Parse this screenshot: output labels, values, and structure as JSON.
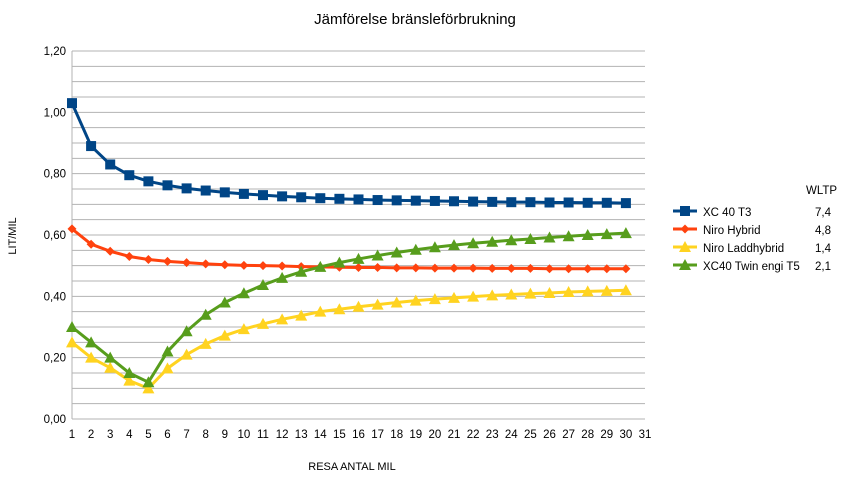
{
  "chart_data": {
    "type": "line",
    "title": "Jämförelse bränsleförbrukning",
    "xlabel": "RESA ANTAL MIL",
    "ylabel": "LIT/MIL",
    "x_ticks": [
      1,
      2,
      3,
      4,
      5,
      6,
      7,
      8,
      9,
      10,
      11,
      12,
      13,
      14,
      15,
      16,
      17,
      18,
      19,
      20,
      21,
      22,
      23,
      24,
      25,
      26,
      27,
      28,
      29,
      30,
      31
    ],
    "y_ticks": [
      "0,00",
      "0,20",
      "0,40",
      "0,60",
      "0,80",
      "1,00",
      "1,20"
    ],
    "ylim": [
      0,
      1.2
    ],
    "xlim": [
      1,
      31
    ],
    "grid": "horizontal",
    "legend_position": "right",
    "legend_header": "WLTP",
    "x": [
      1,
      2,
      3,
      4,
      5,
      6,
      7,
      8,
      9,
      10,
      11,
      12,
      13,
      14,
      15,
      16,
      17,
      18,
      19,
      20,
      21,
      22,
      23,
      24,
      25,
      26,
      27,
      28,
      29,
      30
    ],
    "series": [
      {
        "name": "XC 40 T3",
        "wltp": "7,4",
        "color": "#004586",
        "marker": "square",
        "values": [
          1.03,
          0.89,
          0.83,
          0.795,
          0.775,
          0.762,
          0.752,
          0.745,
          0.739,
          0.734,
          0.73,
          0.726,
          0.723,
          0.72,
          0.718,
          0.716,
          0.714,
          0.713,
          0.712,
          0.711,
          0.71,
          0.709,
          0.708,
          0.707,
          0.707,
          0.706,
          0.706,
          0.705,
          0.705,
          0.704
        ]
      },
      {
        "name": "Niro Hybrid",
        "wltp": "4,8",
        "color": "#ff420e",
        "marker": "diamond",
        "values": [
          0.62,
          0.57,
          0.547,
          0.53,
          0.52,
          0.514,
          0.51,
          0.506,
          0.503,
          0.501,
          0.5,
          0.499,
          0.497,
          0.496,
          0.495,
          0.494,
          0.494,
          0.493,
          0.493,
          0.492,
          0.492,
          0.492,
          0.491,
          0.491,
          0.491,
          0.49,
          0.49,
          0.49,
          0.49,
          0.49
        ]
      },
      {
        "name": "Niro Laddhybrid",
        "wltp": "1,4",
        "color": "#ffd320",
        "marker": "triangle",
        "values": [
          0.25,
          0.2,
          0.167,
          0.125,
          0.1,
          0.165,
          0.21,
          0.245,
          0.272,
          0.293,
          0.31,
          0.325,
          0.337,
          0.35,
          0.358,
          0.366,
          0.373,
          0.38,
          0.386,
          0.391,
          0.395,
          0.399,
          0.403,
          0.406,
          0.409,
          0.411,
          0.414,
          0.416,
          0.418,
          0.42
        ]
      },
      {
        "name": "XC40 Twin engi T5",
        "wltp": "2,1",
        "color": "#579d1c",
        "marker": "triangle",
        "values": [
          0.3,
          0.25,
          0.2,
          0.15,
          0.12,
          0.22,
          0.286,
          0.34,
          0.38,
          0.41,
          0.437,
          0.46,
          0.48,
          0.496,
          0.51,
          0.522,
          0.533,
          0.543,
          0.552,
          0.56,
          0.567,
          0.573,
          0.578,
          0.583,
          0.587,
          0.592,
          0.596,
          0.6,
          0.603,
          0.606
        ]
      }
    ]
  }
}
